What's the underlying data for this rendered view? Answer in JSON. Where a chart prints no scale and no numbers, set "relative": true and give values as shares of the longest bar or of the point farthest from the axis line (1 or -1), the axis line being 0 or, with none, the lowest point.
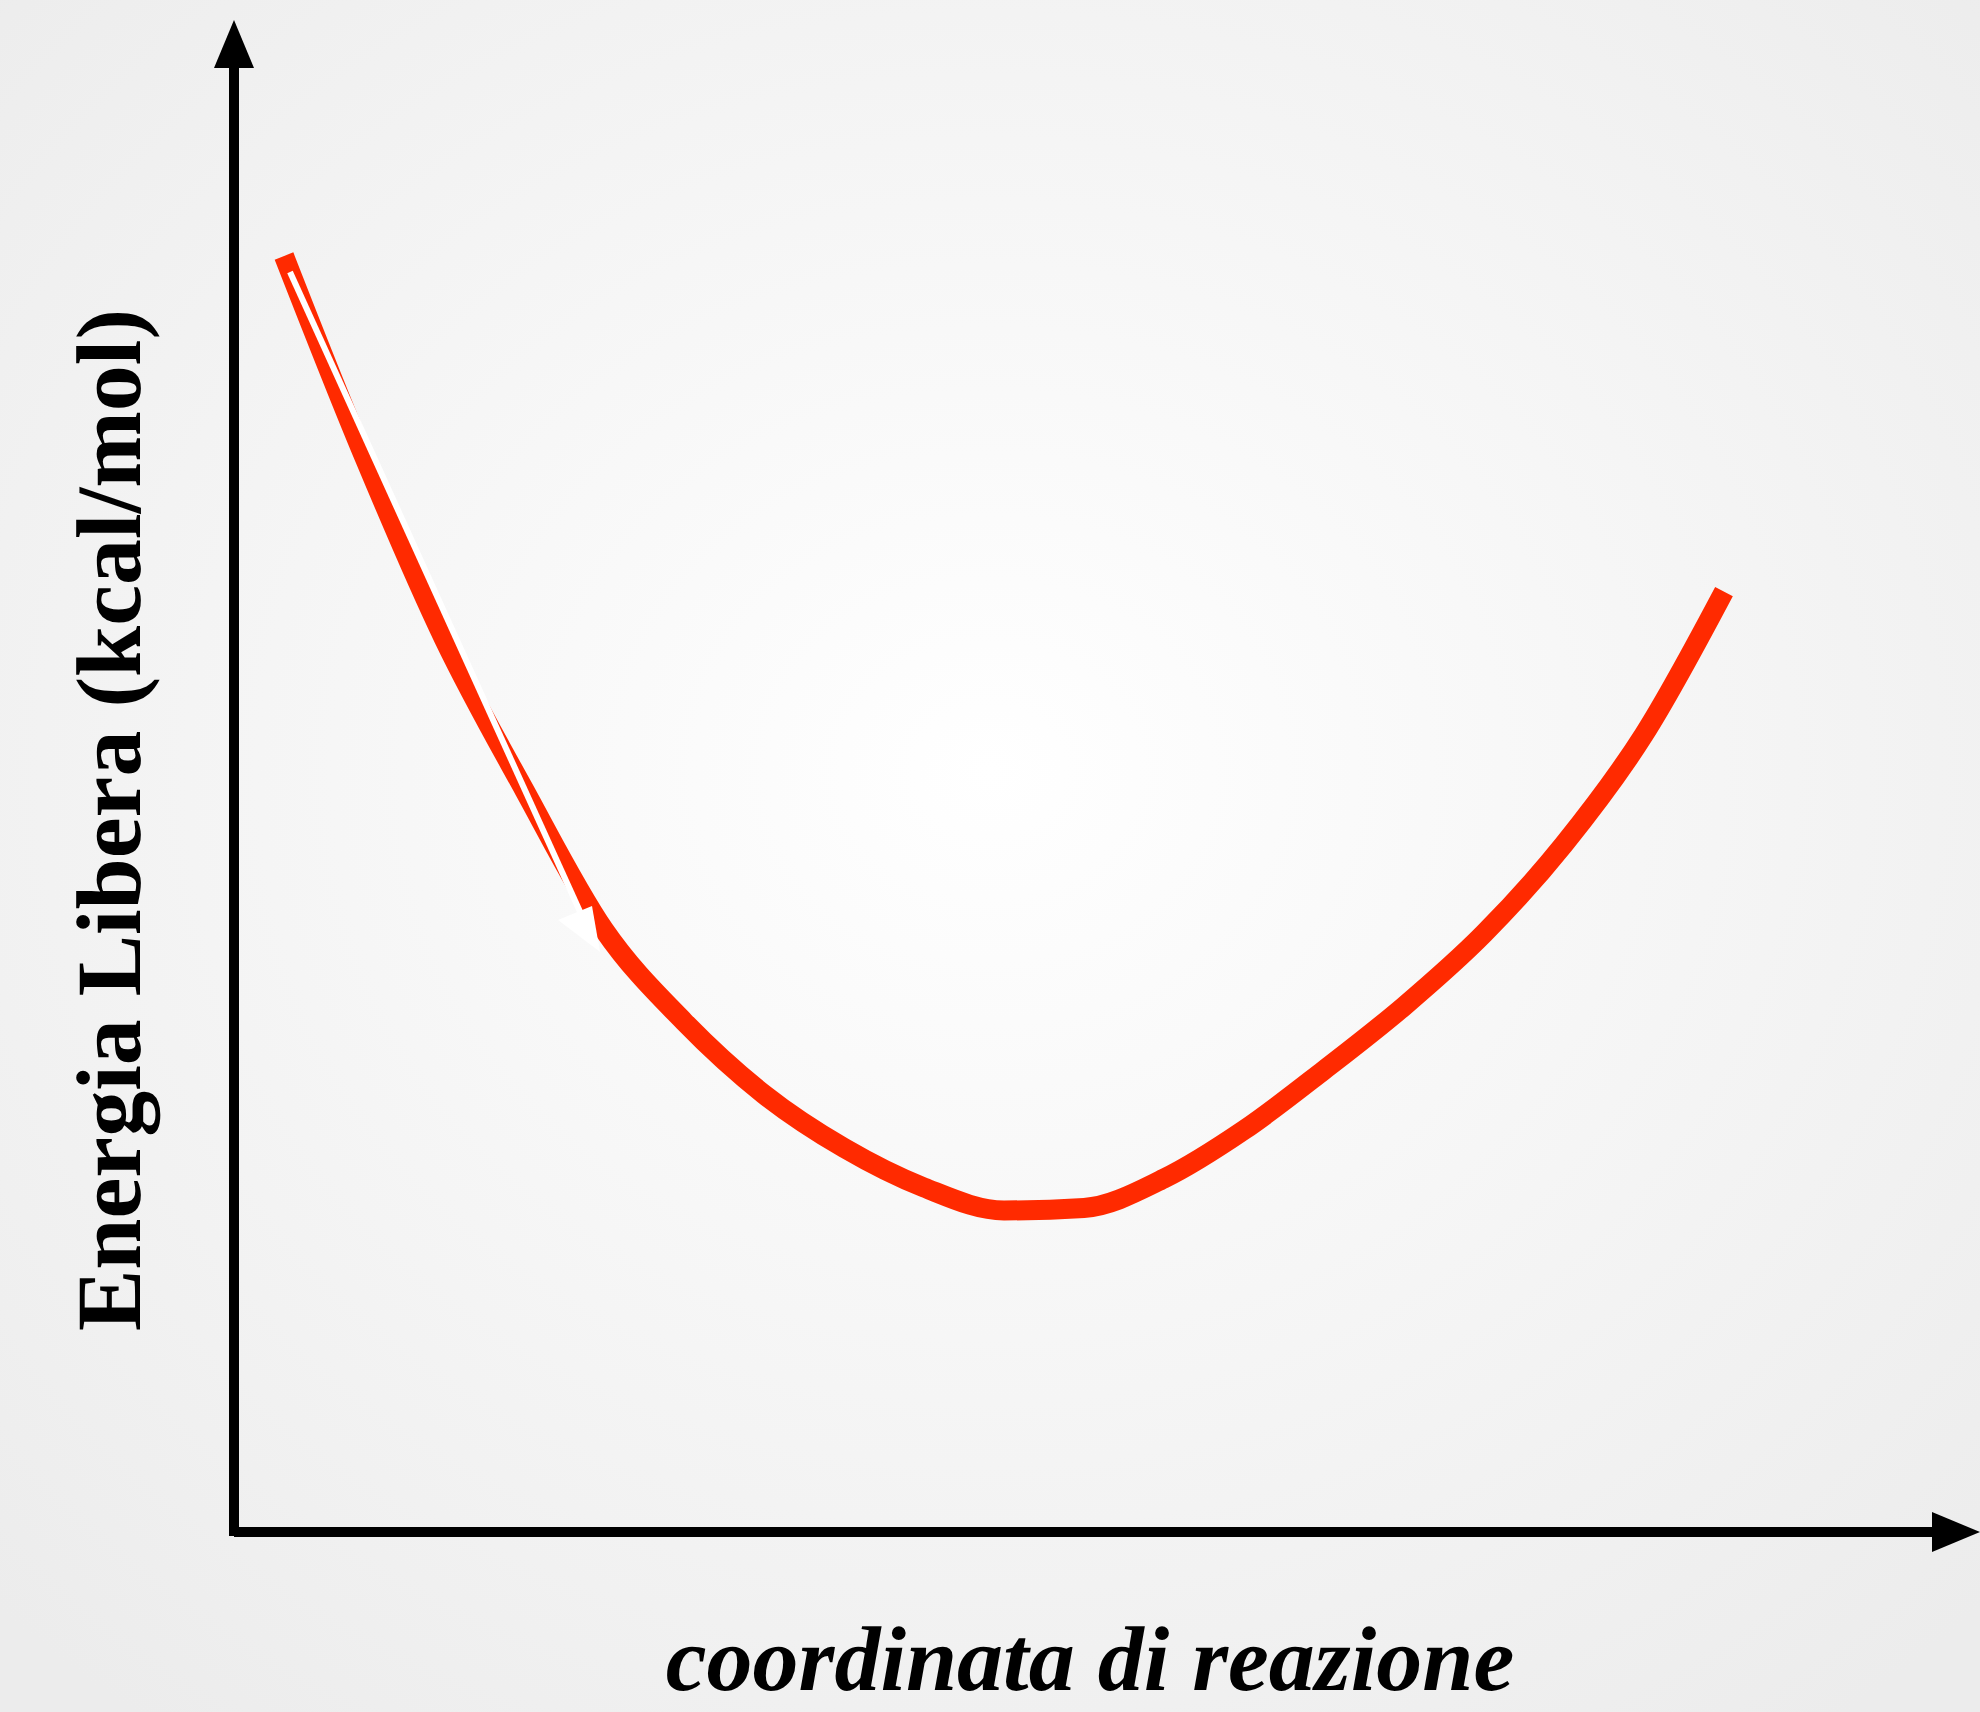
{
  "chart_data": {
    "type": "line",
    "relative": true,
    "xlabel": "coordinata di reazione",
    "ylabel": "Energia Libera (kcal/mol)",
    "marker": "none",
    "line_style": "solid",
    "categories": [
      null,
      null,
      null,
      null,
      null,
      null,
      null,
      null,
      null,
      null,
      null,
      null,
      null,
      null,
      null,
      null,
      null,
      null,
      null
    ],
    "series": [
      {
        "color": "#ff2a00",
        "values": [
          1.0,
          0.843,
          0.7,
          0.582,
          0.472,
          0.4,
          0.343,
          0.301,
          0.27,
          0.252,
          0.254,
          0.277,
          0.315,
          0.362,
          0.412,
          0.469,
          0.539,
          0.625,
          0.737
        ]
      }
    ]
  }
}
